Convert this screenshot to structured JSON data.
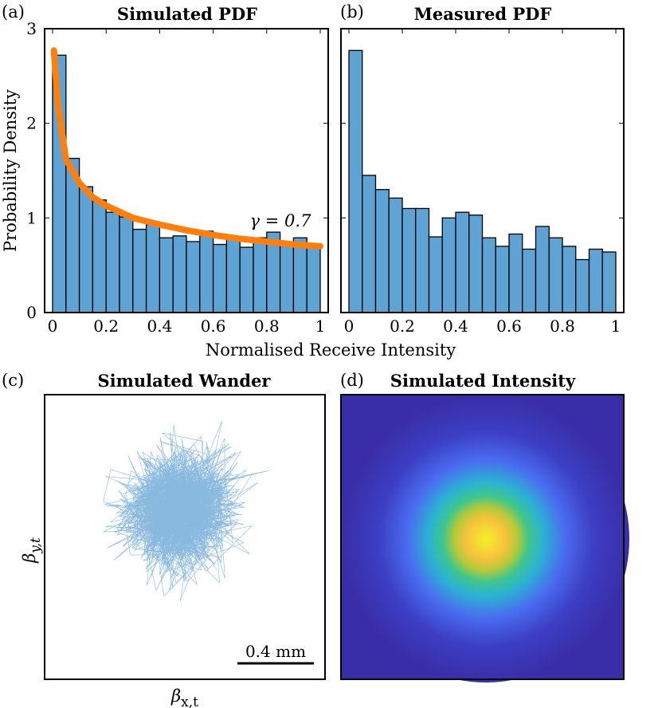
{
  "figure": {
    "shared_xlabel": "Normalised Receive Intensity",
    "shared_ylabel": "Probability Density"
  },
  "chart_data": [
    {
      "type": "bar",
      "panel_label": "(a)",
      "title": "Simulated PDF",
      "xlim": [
        0,
        1
      ],
      "ylim": [
        0,
        3
      ],
      "xticks": [
        "0",
        "0.2",
        "0.4",
        "0.6",
        "0.8",
        "1"
      ],
      "yticks": [
        "0",
        "1",
        "2",
        "3"
      ],
      "bin_width": 0.05,
      "bins": [
        0,
        0.05,
        0.1,
        0.15,
        0.2,
        0.25,
        0.3,
        0.35,
        0.4,
        0.45,
        0.5,
        0.55,
        0.6,
        0.65,
        0.7,
        0.75,
        0.8,
        0.85,
        0.9,
        0.95
      ],
      "values": [
        2.72,
        1.63,
        1.33,
        1.19,
        1.06,
        1.01,
        0.88,
        0.93,
        0.79,
        0.81,
        0.75,
        0.86,
        0.72,
        0.78,
        0.69,
        0.79,
        0.85,
        0.72,
        0.79,
        0.69
      ],
      "bar_color": "#5fa2d4",
      "fit": {
        "color": "#ff7f0e",
        "x": [
          0.005,
          0.02,
          0.05,
          0.1,
          0.15,
          0.2,
          0.3,
          0.4,
          0.5,
          0.6,
          0.7,
          0.8,
          0.9,
          1.0
        ],
        "y": [
          2.77,
          2.2,
          1.62,
          1.37,
          1.22,
          1.13,
          1.0,
          0.93,
          0.87,
          0.82,
          0.78,
          0.75,
          0.72,
          0.7
        ]
      },
      "annotation": "γ = 0.7"
    },
    {
      "type": "bar",
      "panel_label": "(b)",
      "title": "Measured PDF",
      "xlim": [
        0,
        1
      ],
      "ylim": [
        0,
        3
      ],
      "xticks": [
        "0",
        "0.2",
        "0.4",
        "0.6",
        "0.8",
        "1"
      ],
      "bin_width": 0.05,
      "bins": [
        0,
        0.05,
        0.1,
        0.15,
        0.2,
        0.25,
        0.3,
        0.35,
        0.4,
        0.45,
        0.5,
        0.55,
        0.6,
        0.65,
        0.7,
        0.75,
        0.8,
        0.85,
        0.9,
        0.95
      ],
      "values": [
        2.77,
        1.45,
        1.3,
        1.21,
        1.1,
        1.1,
        0.8,
        1.0,
        1.06,
        1.03,
        0.79,
        0.7,
        0.83,
        0.67,
        0.91,
        0.79,
        0.7,
        0.56,
        0.67,
        0.64
      ],
      "bar_color": "#5fa2d4"
    },
    {
      "type": "scatter",
      "panel_label": "(c)",
      "title": "Simulated Wander",
      "xlabel": "βx,t",
      "ylabel": "βy,t",
      "scale_bar": "0.4 mm",
      "line_color": "#2a7fc4"
    },
    {
      "type": "heatmap",
      "panel_label": "(d)",
      "title": "Simulated Intensity",
      "colormap": [
        "#3a2ea8",
        "#4a6cf0",
        "#2bb2d3",
        "#3fc68c",
        "#b5c93a",
        "#f7b33b",
        "#f3f02a"
      ]
    }
  ]
}
